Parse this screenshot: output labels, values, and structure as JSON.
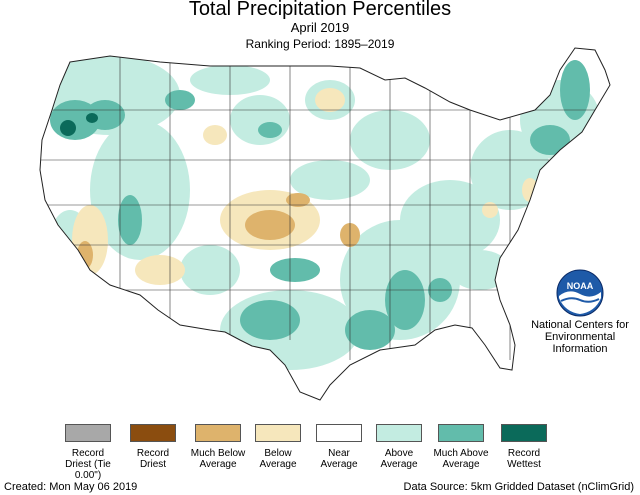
{
  "header": {
    "title": "Total Precipitation Percentiles",
    "subtitle": "April 2019",
    "ranking_period": "Ranking Period: 1895–2019"
  },
  "legend": [
    {
      "label": "Record Driest (Tie 0.00\")",
      "color": "#a8a8a8"
    },
    {
      "label": "Record Driest",
      "color": "#8b4d0f"
    },
    {
      "label": "Much Below Average",
      "color": "#deb36c"
    },
    {
      "label": "Below Average",
      "color": "#f6e7bc"
    },
    {
      "label": "Near Average",
      "color": "#ffffff"
    },
    {
      "label": "Above Average",
      "color": "#c3ece1"
    },
    {
      "label": "Much Above Average",
      "color": "#62bcab"
    },
    {
      "label": "Record Wettest",
      "color": "#0b6a5a"
    }
  ],
  "logo": {
    "icon": "noaa-logo-icon",
    "text": "NOAA",
    "org_name": "National Centers for Environmental Information"
  },
  "footer": {
    "created": "Created: Mon May 06 2019",
    "source": "Data Source: 5km Gridded Dataset (nClimGrid)"
  }
}
